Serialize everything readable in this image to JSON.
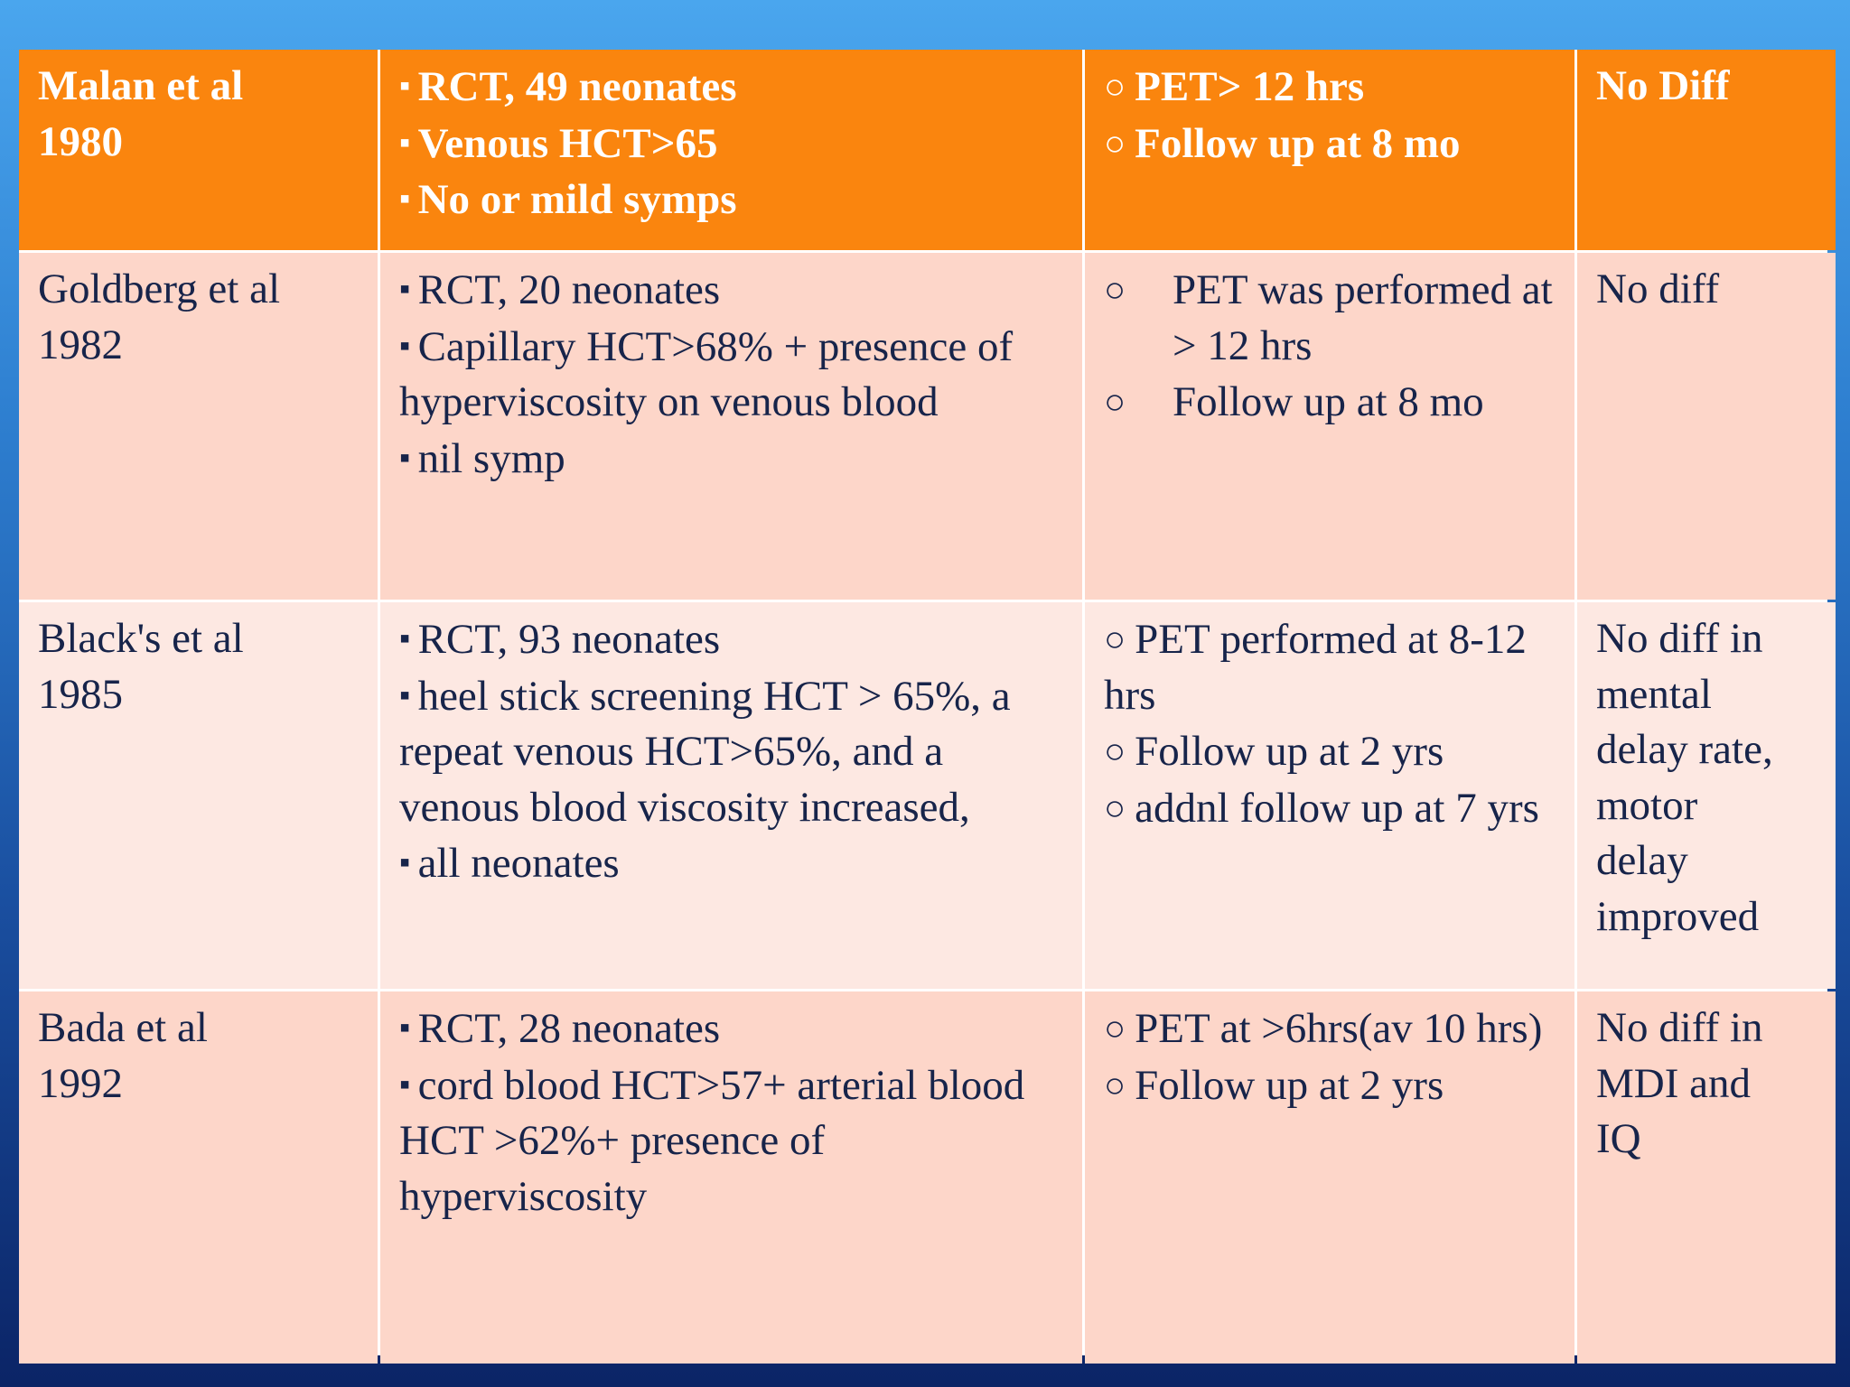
{
  "table": {
    "rows": [
      [
        [
          "Malan et al",
          "1980"
        ],
        [
          "RCT, 49 neonates",
          "Venous HCT>65",
          "No or mild symps"
        ],
        [
          "PET> 12 hrs",
          "Follow up at 8 mo"
        ],
        [
          "No Diff"
        ]
      ],
      [
        [
          "Goldberg et al",
          "1982"
        ],
        [
          "RCT, 20 neonates",
          "Capillary HCT>68% + presence of hyperviscosity on venous blood",
          "nil symp"
        ],
        [
          "PET was performed at > 12 hrs",
          "Follow up at 8 mo"
        ],
        [
          "No diff"
        ]
      ],
      [
        [
          "Black's et al",
          "1985"
        ],
        [
          "RCT, 93 neonates",
          "heel stick screening HCT > 65%, a repeat venous HCT>65%, and a venous blood viscosity increased,",
          "all neonates"
        ],
        [
          "PET performed at 8-12 hrs",
          "Follow up at 2 yrs",
          "addnl follow up at 7 yrs"
        ],
        [
          "No diff in",
          "mental",
          "delay rate,",
          "motor",
          "delay",
          "improved"
        ]
      ],
      [
        [
          "Bada et al",
          "1992"
        ],
        [
          "RCT, 28 neonates",
          "cord blood HCT>57+ arterial blood HCT >62%+  presence of hyperviscosity"
        ],
        [
          "PET at >6hrs(av 10 hrs)",
          "Follow up at 2 yrs"
        ],
        [
          "No diff in",
          "MDI and",
          "IQ"
        ]
      ]
    ]
  }
}
